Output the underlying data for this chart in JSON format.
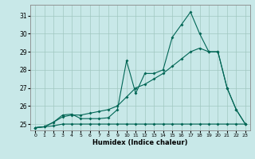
{
  "title": "",
  "xlabel": "Humidex (Indice chaleur)",
  "xlim": [
    -0.5,
    23.5
  ],
  "ylim": [
    24.65,
    31.6
  ],
  "yticks": [
    25,
    26,
    27,
    28,
    29,
    30,
    31
  ],
  "xtick_labels": [
    "0",
    "1",
    "2",
    "3",
    "4",
    "5",
    "6",
    "7",
    "8",
    "9",
    "10",
    "11",
    "12",
    "13",
    "14",
    "15",
    "16",
    "17",
    "18",
    "19",
    "20",
    "21",
    "22",
    "23"
  ],
  "bg_color": "#c8e8e8",
  "grid_color": "#a0c8c0",
  "line_color": "#006655",
  "series1_y": [
    24.8,
    24.85,
    25.1,
    25.5,
    25.55,
    25.3,
    25.3,
    25.3,
    25.35,
    25.8,
    28.5,
    26.7,
    27.8,
    27.8,
    28.0,
    29.8,
    30.5,
    31.2,
    30.0,
    29.0,
    29.0,
    27.0,
    25.8,
    25.0
  ],
  "series2_y": [
    24.8,
    24.85,
    25.1,
    25.4,
    25.5,
    25.5,
    25.6,
    25.7,
    25.8,
    26.0,
    26.5,
    27.0,
    27.2,
    27.5,
    27.8,
    28.2,
    28.6,
    29.0,
    29.2,
    29.0,
    29.0,
    27.0,
    25.8,
    25.0
  ],
  "series3_y": [
    24.8,
    24.85,
    24.9,
    25.0,
    25.0,
    25.0,
    25.0,
    25.0,
    25.0,
    25.0,
    25.0,
    25.0,
    25.0,
    25.0,
    25.0,
    25.0,
    25.0,
    25.0,
    25.0,
    25.0,
    25.0,
    25.0,
    25.0,
    25.0
  ]
}
